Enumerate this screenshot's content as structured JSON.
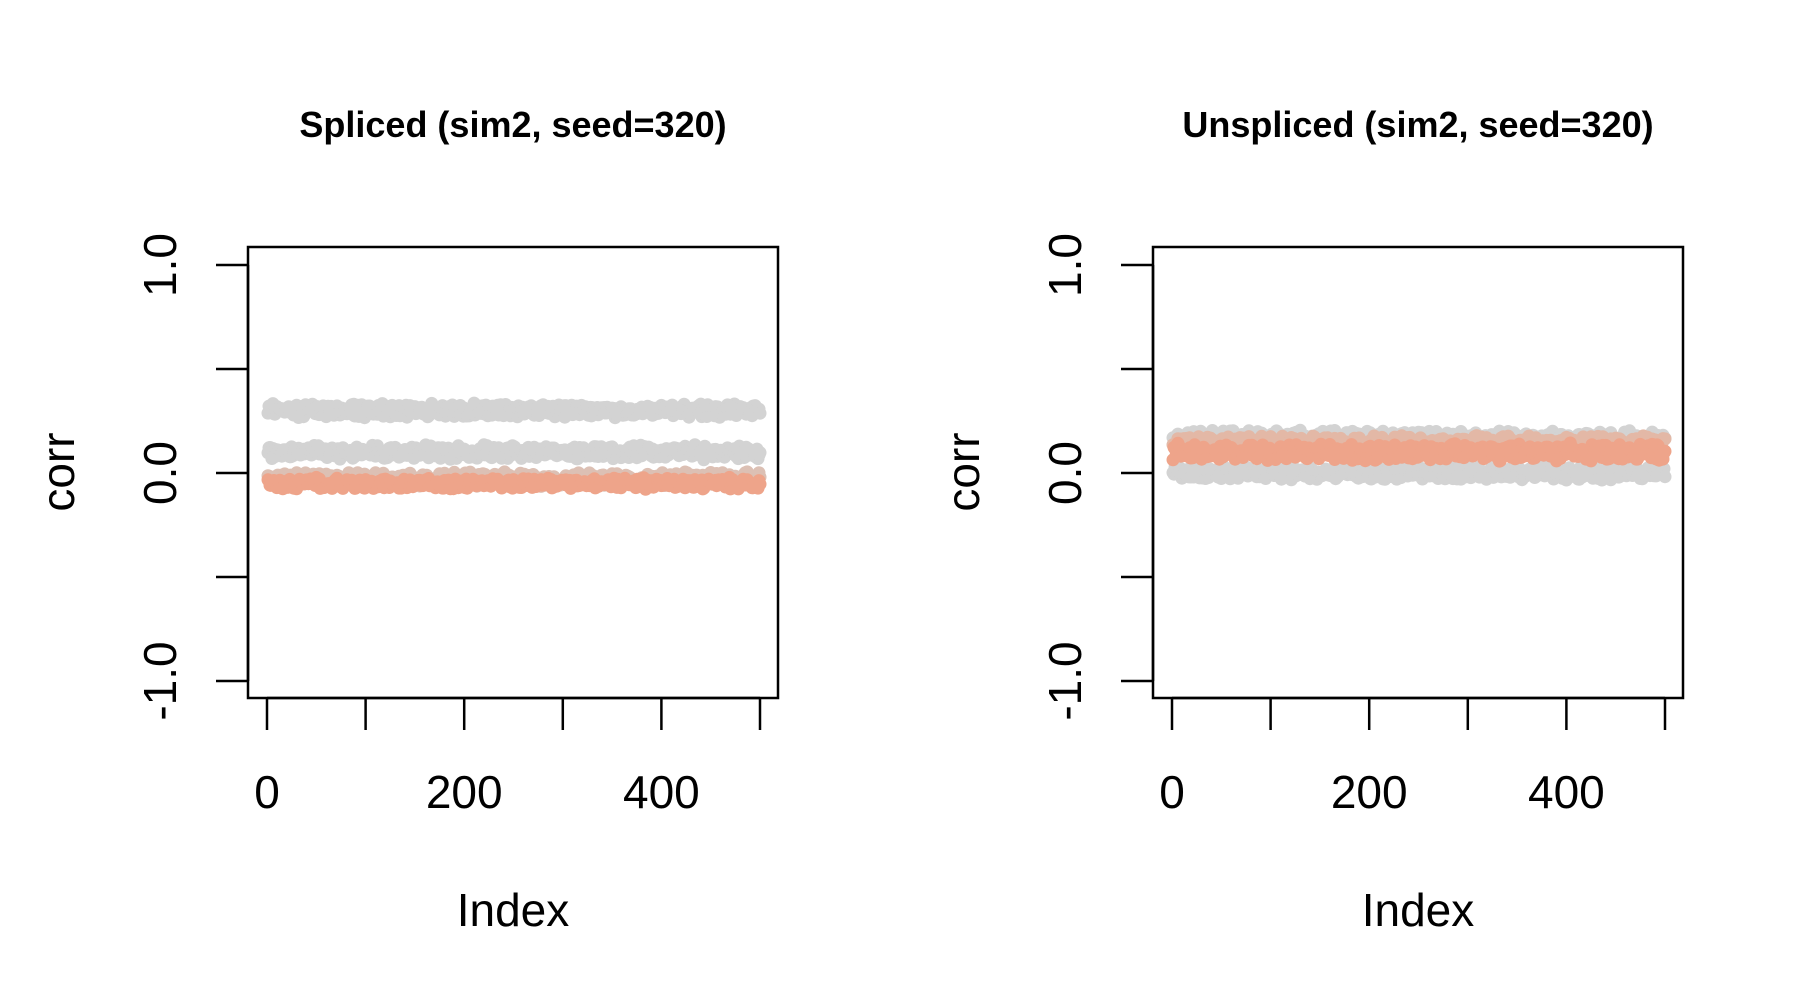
{
  "chart_data": [
    {
      "type": "scatter",
      "title": "Spliced (sim2, seed=320)",
      "xlabel": "Index",
      "ylabel": "corr",
      "xlim": [
        0,
        500
      ],
      "ylim": [
        -1.0,
        1.0
      ],
      "x_ticks": [
        "0",
        "200",
        "400"
      ],
      "x_tick_values": [
        0,
        100,
        200,
        300,
        400,
        500
      ],
      "x_label_values": [
        0,
        200,
        400
      ],
      "y_tick_values": [
        -1.0,
        -0.5,
        0.0,
        0.5,
        1.0
      ],
      "y_label_values": [
        -1.0,
        0.0,
        1.0
      ],
      "y_ticks": [
        "-1.0",
        "0.0",
        "1.0"
      ],
      "grid": false,
      "series": [
        {
          "color": "#d3d3d3",
          "y_mean": 0.3,
          "y_spread": 0.025,
          "count": 500
        },
        {
          "color": "#d3d3d3",
          "y_mean": 0.1,
          "y_spread": 0.025,
          "count": 500
        },
        {
          "color": "#dcc0b4",
          "y_mean": -0.03,
          "y_spread": 0.025,
          "count": 500
        },
        {
          "color": "#eea48a",
          "y_mean": -0.05,
          "y_spread": 0.02,
          "count": 500
        }
      ]
    },
    {
      "type": "scatter",
      "title": "Unspliced (sim2, seed=320)",
      "xlabel": "Index",
      "ylabel": "corr",
      "xlim": [
        0,
        500
      ],
      "ylim": [
        -1.0,
        1.0
      ],
      "x_ticks": [
        "0",
        "200",
        "400"
      ],
      "x_tick_values": [
        0,
        100,
        200,
        300,
        400,
        500
      ],
      "x_label_values": [
        0,
        200,
        400
      ],
      "y_tick_values": [
        -1.0,
        -0.5,
        0.0,
        0.5,
        1.0
      ],
      "y_label_values": [
        -1.0,
        0.0,
        1.0
      ],
      "y_ticks": [
        "-1.0",
        "0.0",
        "1.0"
      ],
      "grid": false,
      "series": [
        {
          "color": "#d3d3d3",
          "y_mean": 0.0,
          "y_spread": 0.025,
          "count": 500
        },
        {
          "color": "#d3d3d3",
          "y_mean": 0.17,
          "y_spread": 0.025,
          "count": 500
        },
        {
          "color": "#e3b8a6",
          "y_mean": 0.14,
          "y_spread": 0.03,
          "count": 500
        },
        {
          "color": "#eea48a",
          "y_mean": 0.1,
          "y_spread": 0.03,
          "count": 500
        }
      ]
    }
  ]
}
